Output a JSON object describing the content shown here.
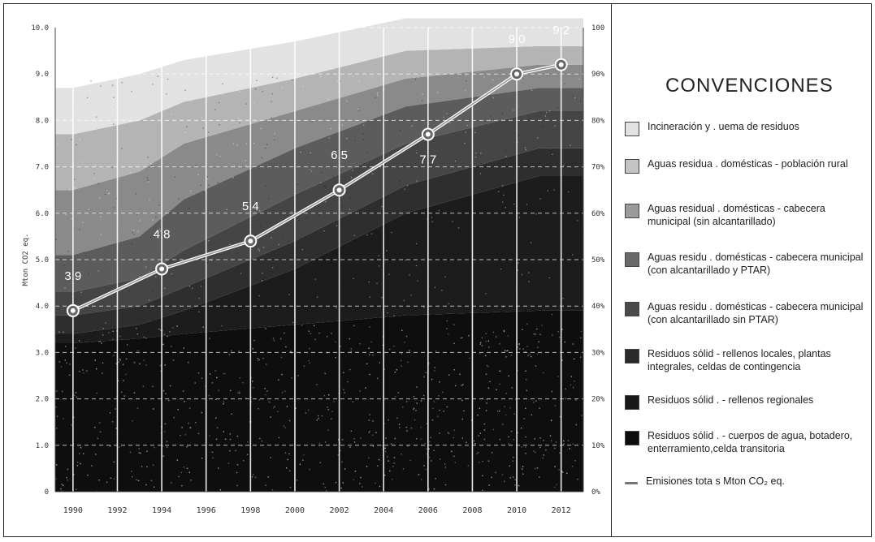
{
  "chart_data": {
    "type": "area",
    "title": "",
    "xlabel": "",
    "ylabel": "Mton CO2 eq.",
    "ylim": [
      0,
      10
    ],
    "ylim_right": [
      0,
      100
    ],
    "y_ticks": [
      "10.0",
      "9.0",
      "8.0",
      "7.0",
      "6.0",
      "5.0",
      "4.0",
      "3.0",
      "2.0",
      "1.0",
      "0"
    ],
    "y_ticks_right": [
      "100",
      "90%",
      "80%",
      "70%",
      "60%",
      "50%",
      "40%",
      "30%",
      "20%",
      "10%",
      "0%"
    ],
    "x_ticks": [
      "1990",
      "1992",
      "1994",
      "1996",
      "1998",
      "2000",
      "2002",
      "2004",
      "2006",
      "2008",
      "2010",
      "2012"
    ],
    "grid": true,
    "stack_years": [
      1990,
      1993,
      1995,
      2000,
      2005,
      2011
    ],
    "series": [
      {
        "name": "Residuos sólidos - cuerpos de agua, botadero, enterramiento,celda transitoria",
        "color": "#0e0e0e",
        "values": [
          3.2,
          3.3,
          3.4,
          3.6,
          3.8,
          3.9
        ]
      },
      {
        "name": "Residuos sólidos - rellenos regionales",
        "color": "#1c1c1c",
        "values": [
          0.2,
          0.3,
          0.5,
          1.2,
          2.2,
          2.9
        ]
      },
      {
        "name": "Residuos sólidos - rellenos locales, plantas integrales, celdas de contingencia",
        "color": "#2e2e2e",
        "values": [
          0.4,
          0.4,
          0.5,
          0.6,
          0.6,
          0.6
        ]
      },
      {
        "name": "Aguas residuales domésticas - cabecera municipal (con alcantarillado sin PTAR)",
        "color": "#454545",
        "values": [
          0.5,
          0.6,
          0.8,
          1.0,
          0.9,
          0.8
        ]
      },
      {
        "name": "Aguas residuales domésticas - cabecera municipal (con alcantarillado y PTAR)",
        "color": "#5c5c5c",
        "values": [
          0.8,
          0.9,
          1.1,
          1.0,
          0.8,
          0.5
        ]
      },
      {
        "name": "Aguas residuales domésticas - cabecera municipal (sin alcantarillado)",
        "color": "#8a8a8a",
        "values": [
          1.4,
          1.4,
          1.2,
          0.8,
          0.6,
          0.5
        ]
      },
      {
        "name": "Aguas residuales domésticas - población rural",
        "color": "#b4b4b4",
        "values": [
          1.2,
          1.1,
          0.9,
          0.7,
          0.6,
          0.4
        ]
      },
      {
        "name": "Incineración y quema de residuos",
        "color": "#e2e2e2",
        "values": [
          1.0,
          1.0,
          0.9,
          0.8,
          0.7,
          0.6
        ]
      }
    ],
    "line": {
      "name": "Emisiones totales Mton CO2 eq.",
      "x": [
        1990,
        1994,
        1998,
        2002,
        2006,
        2010,
        2012
      ],
      "y": [
        3.9,
        4.8,
        5.4,
        6.5,
        7.7,
        9.0,
        9.2
      ],
      "labels": [
        "3.9",
        "4.8",
        "5.4",
        "6.5",
        "7.7",
        "9.0",
        "9.2"
      ]
    }
  },
  "legend": {
    "title": "CONVENCIONES",
    "items": [
      {
        "label": "Incineración y . uema de residuos",
        "color": "#e2e2e2",
        "kind": "swatch"
      },
      {
        "label": "Aguas residua . domésticas - población rural",
        "color": "#c4c4c4",
        "kind": "swatch"
      },
      {
        "label": "Aguas residual . domésticas - cabecera municipal (sin alcantarillado)",
        "color": "#9a9a9a",
        "kind": "swatch"
      },
      {
        "label": "Aguas residu . domésticas - cabecera municipal (con alcantarillado y PTAR)",
        "color": "#6a6a6a",
        "kind": "swatch"
      },
      {
        "label": "Aguas residu . domésticas - cabecera municipal (con alcantarillado sin PTAR)",
        "color": "#4a4a4a",
        "kind": "swatch"
      },
      {
        "label": "Residuos sólid - rellenos locales, plantas integrales, celdas de contingencia",
        "color": "#2a2a2a",
        "kind": "swatch"
      },
      {
        "label": "Residuos sólid . - rellenos regionales",
        "color": "#181818",
        "kind": "swatch"
      },
      {
        "label": "Residuos sólid . - cuerpos de agua, botadero, enterramiento,celda transitoria",
        "color": "#0c0c0c",
        "kind": "swatch"
      },
      {
        "label": "Emisiones tota s Mton CO₂ eq.",
        "color": "#777777",
        "kind": "line"
      }
    ]
  }
}
